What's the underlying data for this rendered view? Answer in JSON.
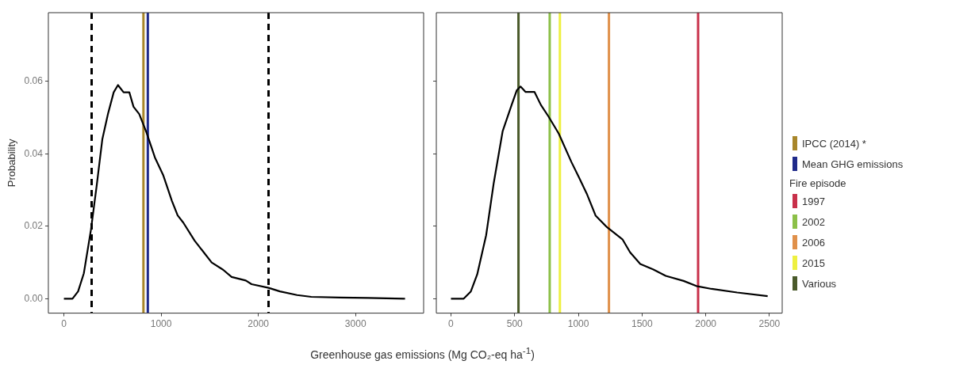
{
  "chart_data": [
    {
      "type": "line",
      "ylabel": "Probability",
      "xlabel": "Greenhouse gas emissions (Mg CO₂-eq ha$^{-1}$)",
      "xlim": [
        -160,
        3700
      ],
      "ylim": [
        -0.004,
        0.079
      ],
      "xticks": [
        0,
        1000,
        2000,
        3000
      ],
      "yticks": [
        {
          "value": 0,
          "label": "0.00"
        },
        0.02,
        0.04,
        0.06
      ],
      "grid": false,
      "legend": "right",
      "marker": "none",
      "line_style": "solid",
      "series": [
        {
          "color": "#000000",
          "x": [
            0,
            88,
            146,
            205,
            278,
            336,
            395,
            453,
            512,
            556,
            614,
            673,
            716,
            775,
            848,
            936,
            1023,
            1111,
            1170,
            1228,
            1345,
            1520,
            1637,
            1725,
            1871,
            1930,
            2105,
            2222,
            2398,
            2544,
            2836,
            3129,
            3509
          ],
          "values": [
            0,
            0,
            0.002,
            0.007,
            0.019,
            0.031,
            0.044,
            0.051,
            0.057,
            0.059,
            0.057,
            0.057,
            0.053,
            0.051,
            0.046,
            0.039,
            0.034,
            0.027,
            0.023,
            0.021,
            0.016,
            0.01,
            0.008,
            0.006,
            0.005,
            0.004,
            0.003,
            0.002,
            0.001,
            0.0005,
            0.0003,
            0.0002,
            0
          ]
        },
        {
          "name": "IPCC (2014) *",
          "color": "#a8862a",
          "x": [
            818,
            818
          ],
          "values": [
            -0.004,
            0.079
          ]
        },
        {
          "name": "Mean GHG emissions",
          "color": "#1f2a8a",
          "x": [
            863,
            863
          ],
          "values": [
            -0.004,
            0.079
          ]
        }
      ],
      "ref_lines": [
        {
          "axis": "x",
          "value": 280,
          "color": "#000000",
          "line_style": "dashed"
        },
        {
          "axis": "x",
          "value": 2100,
          "color": "#000000",
          "line_style": "dashed"
        }
      ]
    },
    {
      "type": "line",
      "xlim": [
        -115,
        2600
      ],
      "ylim": [
        -0.004,
        0.079
      ],
      "xticks": [
        0,
        500,
        1000,
        1500,
        2000,
        2500
      ],
      "yticks": [
        0,
        0.02,
        0.04,
        0.06
      ],
      "grid": false,
      "legend": "right",
      "tick_labels": "x",
      "legend_title": "Fire episode",
      "marker": "none",
      "line_style": "solid",
      "series": [
        {
          "color": "#000000",
          "x": [
            0,
            100,
            156,
            206,
            276,
            336,
            406,
            476,
            516,
            546,
            586,
            656,
            706,
            766,
            846,
            946,
            1006,
            1066,
            1136,
            1226,
            1346,
            1406,
            1486,
            1586,
            1686,
            1826,
            1926,
            2046,
            2246,
            2486
          ],
          "values": [
            0,
            0,
            0.002,
            0.0067,
            0.0175,
            0.032,
            0.0463,
            0.0535,
            0.0575,
            0.0586,
            0.0571,
            0.0571,
            0.0535,
            0.0503,
            0.0456,
            0.0377,
            0.0334,
            0.029,
            0.0229,
            0.0197,
            0.0164,
            0.0128,
            0.0096,
            0.0081,
            0.0063,
            0.0049,
            0.0035,
            0.0027,
            0.0017,
            0.0007
          ]
        },
        {
          "name": "1997",
          "color": "#c8304a",
          "x": [
            1940,
            1940
          ],
          "values": [
            -0.004,
            0.079
          ]
        },
        {
          "name": "2002",
          "color": "#8cc048",
          "x": [
            775,
            775
          ],
          "values": [
            -0.004,
            0.079
          ]
        },
        {
          "name": "2006",
          "color": "#e0904a",
          "x": [
            1240,
            1240
          ],
          "values": [
            -0.004,
            0.079
          ]
        },
        {
          "name": "2015",
          "color": "#eef040",
          "x": [
            855,
            855
          ],
          "values": [
            -0.004,
            0.079
          ]
        },
        {
          "name": "Various",
          "color": "#4a5a2a",
          "x": [
            530,
            530
          ],
          "values": [
            -0.004,
            0.079
          ]
        }
      ]
    }
  ]
}
